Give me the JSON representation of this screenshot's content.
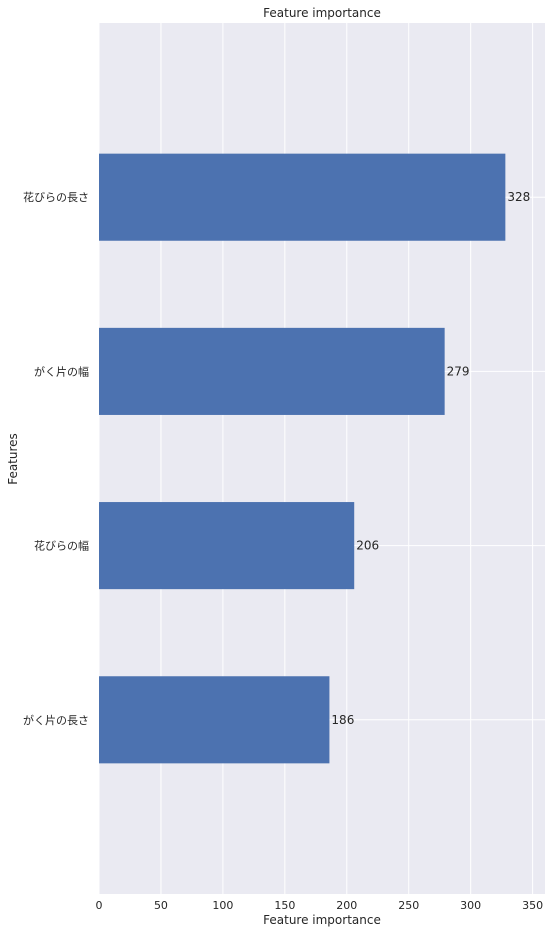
{
  "chart_data": {
    "type": "bar",
    "orientation": "horizontal",
    "title": "Feature importance",
    "xlabel": "Feature importance",
    "ylabel": "Features",
    "categories": [
      "花びらの長さ",
      "がく片の幅",
      "花びらの幅",
      "がく片の長さ"
    ],
    "values": [
      328,
      279,
      206,
      186
    ],
    "xlim": [
      0,
      360
    ],
    "xticks": [
      0,
      50,
      100,
      150,
      200,
      250,
      300,
      350
    ],
    "grid": true,
    "legend": "none",
    "colors": {
      "bar": "#4c72b0",
      "background": "#eaeaf2",
      "grid": "#ffffff",
      "text": "#262626"
    }
  }
}
